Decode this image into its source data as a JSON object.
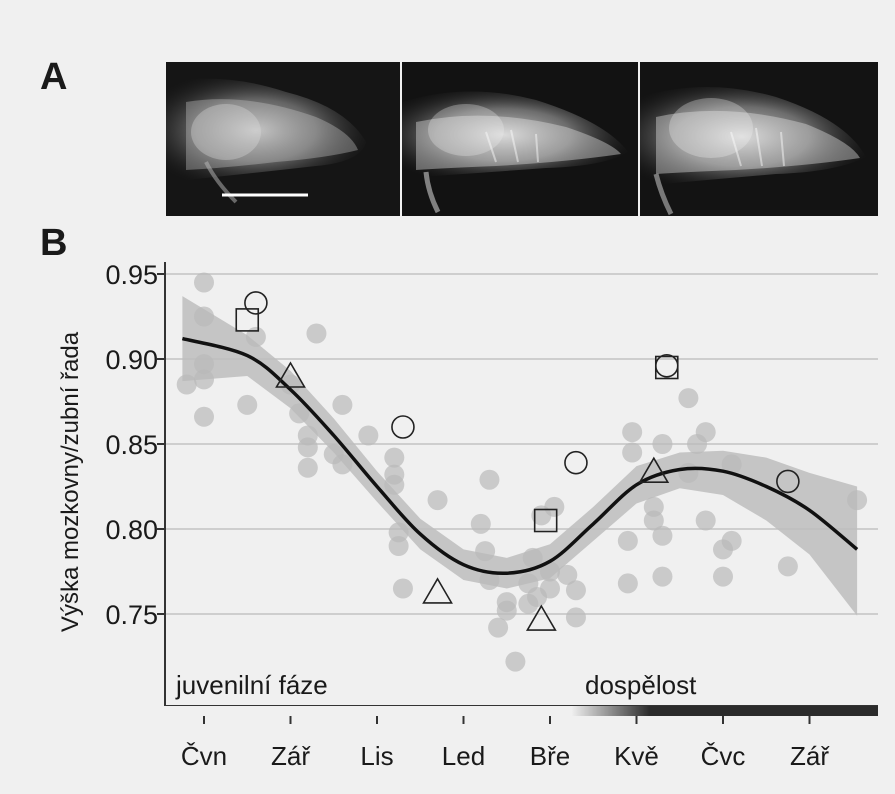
{
  "panels": {
    "a": "A",
    "b": "B"
  },
  "chart_data": {
    "type": "scatter",
    "ylabel": "Výška mozkovny/zubní řada",
    "xlabel": "",
    "ylim": [
      0.7,
      0.96
    ],
    "xlim": [
      -0.4,
      7.4
    ],
    "yticks": [
      0.75,
      0.8,
      0.85,
      0.9,
      0.95
    ],
    "ytick_labels": [
      "0.75",
      "0.80",
      "0.85",
      "0.90",
      "0.95"
    ],
    "xtick_labels": [
      "Čvn",
      "Zář",
      "Lis",
      "Led",
      "Bře",
      "Kvě",
      "Čvc",
      "Zář"
    ],
    "xticks": [
      0,
      1,
      2,
      3,
      4,
      5,
      6,
      7
    ],
    "grid": "horizontal",
    "phase_labels": {
      "juvenile": "juvenilní fáze",
      "adult": "dospělost"
    },
    "fit_curve": {
      "x": [
        -0.25,
        0.5,
        1.0,
        1.5,
        2.0,
        2.5,
        3.0,
        3.5,
        4.0,
        4.5,
        5.0,
        5.5,
        6.0,
        6.5,
        7.0,
        7.55
      ],
      "y": [
        0.912,
        0.902,
        0.882,
        0.855,
        0.825,
        0.797,
        0.779,
        0.774,
        0.781,
        0.803,
        0.826,
        0.835,
        0.834,
        0.825,
        0.811,
        0.788
      ]
    },
    "ci_band": {
      "x": [
        -0.25,
        0.5,
        1.0,
        1.5,
        2.0,
        2.5,
        3.0,
        3.5,
        4.0,
        4.5,
        5.0,
        5.5,
        6.0,
        6.5,
        7.0,
        7.55
      ],
      "upper": [
        0.937,
        0.914,
        0.893,
        0.865,
        0.834,
        0.806,
        0.788,
        0.783,
        0.791,
        0.813,
        0.837,
        0.845,
        0.846,
        0.842,
        0.833,
        0.825
      ],
      "lower": [
        0.887,
        0.89,
        0.871,
        0.845,
        0.816,
        0.788,
        0.77,
        0.765,
        0.771,
        0.793,
        0.815,
        0.824,
        0.82,
        0.805,
        0.785,
        0.749
      ]
    },
    "series": [
      {
        "marker": "dot",
        "points": [
          [
            -0.2,
            0.885
          ],
          [
            0.0,
            0.925
          ],
          [
            0.0,
            0.945
          ],
          [
            0.0,
            0.897
          ],
          [
            0.0,
            0.888
          ],
          [
            0.0,
            0.866
          ],
          [
            0.5,
            0.873
          ],
          [
            0.6,
            0.913
          ],
          [
            1.0,
            0.885
          ],
          [
            1.1,
            0.868
          ],
          [
            1.2,
            0.855
          ],
          [
            1.2,
            0.848
          ],
          [
            1.3,
            0.915
          ],
          [
            1.2,
            0.836
          ],
          [
            1.5,
            0.844
          ],
          [
            1.6,
            0.873
          ],
          [
            1.6,
            0.838
          ],
          [
            1.9,
            0.855
          ],
          [
            2.2,
            0.842
          ],
          [
            2.2,
            0.832
          ],
          [
            2.2,
            0.826
          ],
          [
            2.25,
            0.798
          ],
          [
            2.25,
            0.79
          ],
          [
            2.3,
            0.765
          ],
          [
            2.7,
            0.817
          ],
          [
            3.2,
            0.803
          ],
          [
            3.25,
            0.787
          ],
          [
            3.3,
            0.829
          ],
          [
            3.3,
            0.77
          ],
          [
            3.4,
            0.742
          ],
          [
            3.5,
            0.757
          ],
          [
            3.5,
            0.752
          ],
          [
            3.6,
            0.722
          ],
          [
            3.75,
            0.768
          ],
          [
            3.75,
            0.756
          ],
          [
            3.8,
            0.783
          ],
          [
            3.85,
            0.76
          ],
          [
            3.9,
            0.808
          ],
          [
            4.0,
            0.775
          ],
          [
            4.0,
            0.765
          ],
          [
            4.05,
            0.813
          ],
          [
            4.2,
            0.773
          ],
          [
            4.3,
            0.764
          ],
          [
            4.3,
            0.748
          ],
          [
            4.9,
            0.793
          ],
          [
            4.9,
            0.768
          ],
          [
            4.95,
            0.845
          ],
          [
            4.95,
            0.857
          ],
          [
            5.2,
            0.813
          ],
          [
            5.2,
            0.805
          ],
          [
            5.3,
            0.796
          ],
          [
            5.3,
            0.772
          ],
          [
            5.3,
            0.85
          ],
          [
            5.6,
            0.833
          ],
          [
            5.7,
            0.85
          ],
          [
            5.8,
            0.857
          ],
          [
            5.8,
            0.805
          ],
          [
            5.6,
            0.877
          ],
          [
            6.0,
            0.788
          ],
          [
            6.0,
            0.772
          ],
          [
            6.1,
            0.793
          ],
          [
            6.1,
            0.838
          ],
          [
            6.75,
            0.778
          ],
          [
            7.55,
            0.817
          ]
        ]
      },
      {
        "marker": "circle",
        "points": [
          [
            0.6,
            0.933
          ],
          [
            2.3,
            0.86
          ],
          [
            4.3,
            0.839
          ],
          [
            5.35,
            0.896
          ],
          [
            6.75,
            0.828
          ]
        ]
      },
      {
        "marker": "square",
        "points": [
          [
            0.5,
            0.923
          ],
          [
            3.95,
            0.805
          ],
          [
            5.35,
            0.895
          ]
        ]
      },
      {
        "marker": "triangle",
        "points": [
          [
            1.0,
            0.89
          ],
          [
            2.7,
            0.763
          ],
          [
            3.9,
            0.747
          ],
          [
            5.2,
            0.834
          ]
        ]
      }
    ]
  },
  "colors": {
    "background": "#f0f0f0",
    "dots": "#b9b9b9",
    "ci_band": "#bdbdbd",
    "fit_line": "#111111",
    "grid": "#c2c2c2",
    "axis": "#333333",
    "text": "#1a1a1a",
    "bar_dark": "#2b2b2b"
  }
}
